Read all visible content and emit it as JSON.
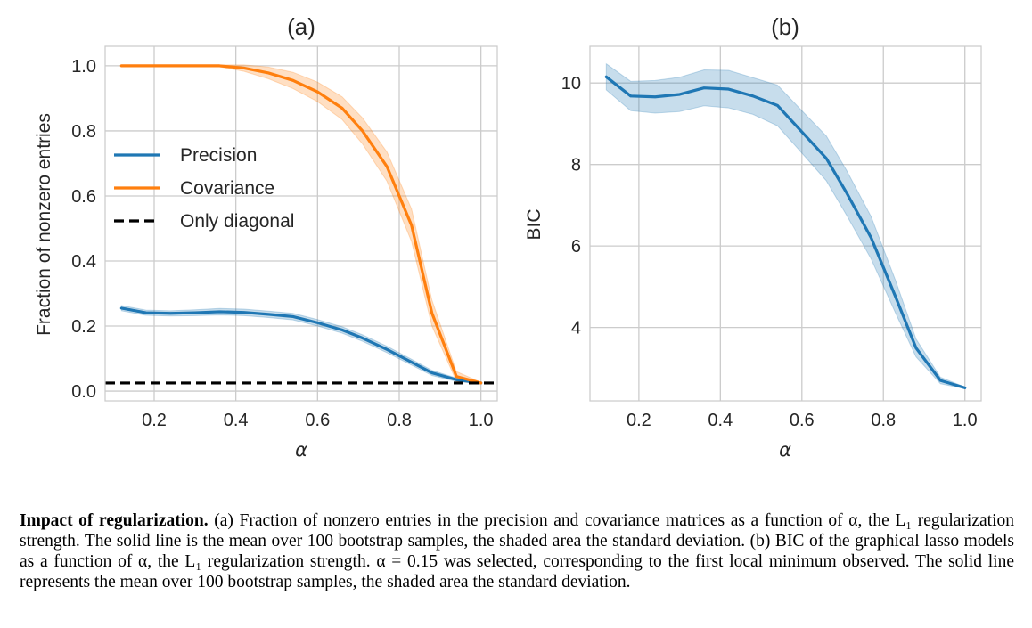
{
  "caption": {
    "bold": "Impact of regularization.",
    "text": "(a) Fraction of nonzero entries in the precision and covariance matrices as a function of α, the L₁ regularization strength. The solid line is the mean over 100 bootstrap samples, the shaded area the standard deviation. (b) BIC of the graphical lasso models as a function of α, the L₁ regularization strength. α = 0.15 was selected, corresponding to the first local minimum observed. The solid line represents the mean over 100 bootstrap samples, the shaded area the standard deviation."
  },
  "colors": {
    "precision": "#1f77b4",
    "covariance": "#ff7f0e",
    "diagonal": "#000000",
    "grid": "#cccccc"
  },
  "chart_data": [
    {
      "type": "line",
      "title": "(a)",
      "xlabel": "α",
      "ylabel": "Fraction of nonzero entries",
      "xlim": [
        0.08,
        1.04
      ],
      "ylim": [
        -0.03,
        1.06
      ],
      "xticks": [
        0.2,
        0.4,
        0.6,
        0.8,
        1.0
      ],
      "xtick_labels": [
        "0.2",
        "0.4",
        "0.6",
        "0.8",
        "1.0"
      ],
      "yticks": [
        0.0,
        0.2,
        0.4,
        0.6,
        0.8,
        1.0
      ],
      "ytick_labels": [
        "0.0",
        "0.2",
        "0.4",
        "0.6",
        "0.8",
        "1.0"
      ],
      "grid": true,
      "legend_position": "upper-left",
      "x": [
        0.12,
        0.18,
        0.24,
        0.3,
        0.36,
        0.42,
        0.48,
        0.54,
        0.6,
        0.66,
        0.71,
        0.77,
        0.83,
        0.88,
        0.94,
        1.0
      ],
      "series": [
        {
          "name": "Precision",
          "color": "#1f77b4",
          "values": [
            0.255,
            0.241,
            0.239,
            0.241,
            0.244,
            0.242,
            0.236,
            0.229,
            0.21,
            0.188,
            0.163,
            0.128,
            0.089,
            0.056,
            0.035,
            0.025
          ],
          "std": [
            0.008,
            0.008,
            0.008,
            0.009,
            0.01,
            0.01,
            0.01,
            0.01,
            0.01,
            0.01,
            0.01,
            0.01,
            0.009,
            0.008,
            0.005,
            0.002
          ]
        },
        {
          "name": "Covariance",
          "color": "#ff7f0e",
          "values": [
            1.0,
            1.0,
            1.0,
            1.0,
            1.0,
            0.993,
            0.978,
            0.955,
            0.92,
            0.87,
            0.8,
            0.69,
            0.51,
            0.24,
            0.045,
            0.025
          ],
          "std": [
            0.0,
            0.0,
            0.0,
            0.0,
            0.003,
            0.01,
            0.018,
            0.025,
            0.03,
            0.035,
            0.04,
            0.045,
            0.05,
            0.04,
            0.015,
            0.002
          ]
        },
        {
          "name": "Only diagonal",
          "color": "#000000",
          "dashed": true,
          "constant": 0.025
        }
      ]
    },
    {
      "type": "line",
      "title": "(b)",
      "xlabel": "α",
      "ylabel": "BIC",
      "xlim": [
        0.08,
        1.04
      ],
      "ylim": [
        2.2,
        10.9
      ],
      "xticks": [
        0.2,
        0.4,
        0.6,
        0.8,
        1.0
      ],
      "xtick_labels": [
        "0.2",
        "0.4",
        "0.6",
        "0.8",
        "1.0"
      ],
      "yticks": [
        4,
        6,
        8,
        10
      ],
      "ytick_labels": [
        "4",
        "6",
        "8",
        "10"
      ],
      "grid": true,
      "x": [
        0.12,
        0.18,
        0.24,
        0.3,
        0.36,
        0.42,
        0.48,
        0.54,
        0.6,
        0.66,
        0.71,
        0.77,
        0.83,
        0.88,
        0.94,
        1.0
      ],
      "series": [
        {
          "color": "#1f77b4",
          "values": [
            10.15,
            9.68,
            9.66,
            9.72,
            9.88,
            9.85,
            9.68,
            9.45,
            8.8,
            8.15,
            7.3,
            6.2,
            4.75,
            3.5,
            2.7,
            2.52
          ],
          "std": [
            0.32,
            0.36,
            0.4,
            0.42,
            0.44,
            0.46,
            0.45,
            0.5,
            0.52,
            0.55,
            0.55,
            0.52,
            0.4,
            0.22,
            0.08,
            0.02
          ]
        }
      ]
    }
  ]
}
